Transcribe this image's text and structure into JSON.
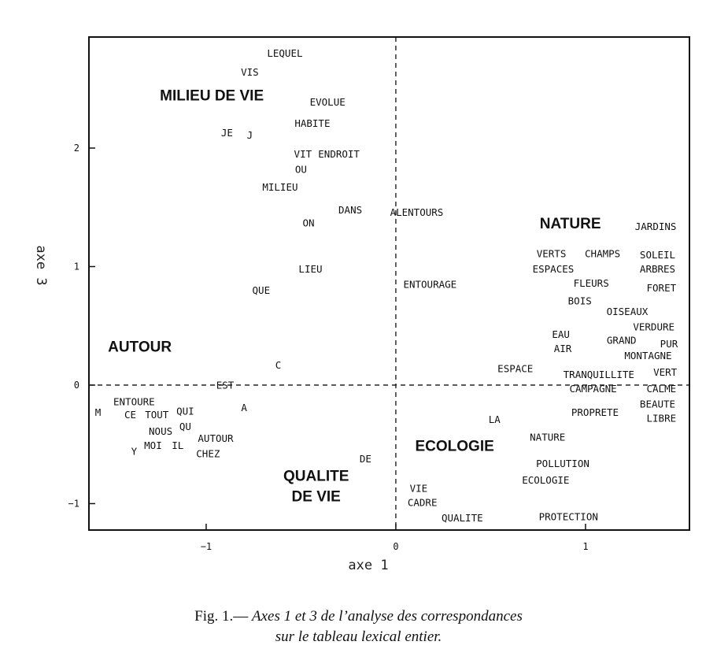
{
  "chart_data": {
    "type": "scatter",
    "title": "",
    "xlabel": "axe 1",
    "ylabel": "axe 3",
    "xlim": [
      -1.618,
      1.548
    ],
    "ylim": [
      -1.223,
      2.937
    ],
    "xticks": [
      -1,
      0,
      1
    ],
    "yticks": [
      -1,
      0,
      1,
      2
    ],
    "grid": false,
    "reference_lines": {
      "x": 0,
      "y": 0
    },
    "points": [
      {
        "label": "LEQUEL",
        "x": -0.585,
        "y": 2.8
      },
      {
        "label": "VIS",
        "x": -0.77,
        "y": 2.64
      },
      {
        "label": "EVOLUE",
        "x": -0.36,
        "y": 2.39
      },
      {
        "label": "HABITE",
        "x": -0.44,
        "y": 2.21
      },
      {
        "label": "JE",
        "x": -0.89,
        "y": 2.13
      },
      {
        "label": "J",
        "x": -0.77,
        "y": 2.11
      },
      {
        "label": "VIT",
        "x": -0.49,
        "y": 1.95
      },
      {
        "label": "ENDROIT",
        "x": -0.3,
        "y": 1.95
      },
      {
        "label": "OU",
        "x": -0.5,
        "y": 1.82
      },
      {
        "label": "MILIEU",
        "x": -0.61,
        "y": 1.67
      },
      {
        "label": "DANS",
        "x": -0.24,
        "y": 1.48
      },
      {
        "label": "ALENTOURS",
        "x": 0.11,
        "y": 1.46
      },
      {
        "label": "ON",
        "x": -0.46,
        "y": 1.37
      },
      {
        "label": "LIEU",
        "x": -0.45,
        "y": 0.98
      },
      {
        "label": "QUE",
        "x": -0.71,
        "y": 0.8
      },
      {
        "label": "ENTOURAGE",
        "x": 0.18,
        "y": 0.85
      },
      {
        "label": "C",
        "x": -0.62,
        "y": 0.17
      },
      {
        "label": "EST",
        "x": -0.9,
        "y": 0.0
      },
      {
        "label": "ENTOURE",
        "x": -1.38,
        "y": -0.14
      },
      {
        "label": "M",
        "x": -1.57,
        "y": -0.23
      },
      {
        "label": "CE",
        "x": -1.4,
        "y": -0.25
      },
      {
        "label": "TOUT",
        "x": -1.26,
        "y": -0.25
      },
      {
        "label": "QUI",
        "x": -1.11,
        "y": -0.22
      },
      {
        "label": "A",
        "x": -0.8,
        "y": -0.19
      },
      {
        "label": "QU",
        "x": -1.11,
        "y": -0.35
      },
      {
        "label": "NOUS",
        "x": -1.24,
        "y": -0.39
      },
      {
        "label": "AUTOUR",
        "x": -0.95,
        "y": -0.45
      },
      {
        "label": "MOI",
        "x": -1.28,
        "y": -0.51
      },
      {
        "label": "IL",
        "x": -1.15,
        "y": -0.51
      },
      {
        "label": "Y",
        "x": -1.38,
        "y": -0.56
      },
      {
        "label": "CHEZ",
        "x": -0.99,
        "y": -0.58
      },
      {
        "label": "DE",
        "x": -0.16,
        "y": -0.62
      },
      {
        "label": "LA",
        "x": 0.52,
        "y": -0.29
      },
      {
        "label": "NATURE",
        "x": 0.8,
        "y": -0.44
      },
      {
        "label": "POLLUTION",
        "x": 0.88,
        "y": -0.66
      },
      {
        "label": "ECOLOGIE",
        "x": 0.79,
        "y": -0.8
      },
      {
        "label": "VIE",
        "x": 0.12,
        "y": -0.87
      },
      {
        "label": "CADRE",
        "x": 0.14,
        "y": -0.99
      },
      {
        "label": "QUALITE",
        "x": 0.35,
        "y": -1.12
      },
      {
        "label": "PROTECTION",
        "x": 0.91,
        "y": -1.11
      },
      {
        "label": "JARDINS",
        "x": 1.37,
        "y": 1.34
      },
      {
        "label": "VERTS",
        "x": 0.82,
        "y": 1.11
      },
      {
        "label": "CHAMPS",
        "x": 1.09,
        "y": 1.11
      },
      {
        "label": "SOLEIL",
        "x": 1.38,
        "y": 1.1
      },
      {
        "label": "ESPACES",
        "x": 0.83,
        "y": 0.98
      },
      {
        "label": "ARBRES",
        "x": 1.38,
        "y": 0.98
      },
      {
        "label": "FLEURS",
        "x": 1.03,
        "y": 0.86
      },
      {
        "label": "FORET",
        "x": 1.4,
        "y": 0.82
      },
      {
        "label": "BOIS",
        "x": 0.97,
        "y": 0.71
      },
      {
        "label": "OISEAUX",
        "x": 1.22,
        "y": 0.62
      },
      {
        "label": "VERDURE",
        "x": 1.36,
        "y": 0.49
      },
      {
        "label": "EAU",
        "x": 0.87,
        "y": 0.43
      },
      {
        "label": "GRAND",
        "x": 1.19,
        "y": 0.38
      },
      {
        "label": "PUR",
        "x": 1.44,
        "y": 0.35
      },
      {
        "label": "AIR",
        "x": 0.88,
        "y": 0.31
      },
      {
        "label": "MONTAGNE",
        "x": 1.33,
        "y": 0.25
      },
      {
        "label": "ESPACE",
        "x": 0.63,
        "y": 0.14
      },
      {
        "label": "TRANQUILLITE",
        "x": 1.07,
        "y": 0.09
      },
      {
        "label": "VERT",
        "x": 1.42,
        "y": 0.11
      },
      {
        "label": "CAMPAGNE",
        "x": 1.04,
        "y": -0.03
      },
      {
        "label": "CALME",
        "x": 1.4,
        "y": -0.03
      },
      {
        "label": "BEAUTE",
        "x": 1.38,
        "y": -0.16
      },
      {
        "label": "PROPRETE",
        "x": 1.05,
        "y": -0.23
      },
      {
        "label": "LIBRE",
        "x": 1.4,
        "y": -0.28
      }
    ],
    "annotations": [
      {
        "text": [
          "MILIEU DE VIE"
        ],
        "x": -0.97,
        "y": 2.45
      },
      {
        "text": [
          "NATURE"
        ],
        "x": 0.92,
        "y": 1.37
      },
      {
        "text": [
          "AUTOUR"
        ],
        "x": -1.35,
        "y": 0.33
      },
      {
        "text": [
          "ECOLOGIE"
        ],
        "x": 0.31,
        "y": -0.51
      },
      {
        "text": [
          "QUALITE",
          "DE VIE"
        ],
        "x": -0.42,
        "y": -0.76
      }
    ]
  },
  "caption": {
    "prefix": "Fig. 1.— ",
    "line1": "Axes 1 et 3 de l’analyse des correspondances",
    "line2": "sur le tableau lexical entier."
  }
}
